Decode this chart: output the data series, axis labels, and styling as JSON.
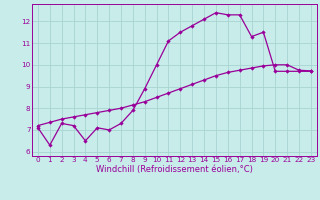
{
  "title": "",
  "xlabel": "Windchill (Refroidissement éolien,°C)",
  "bg_color": "#c8ecea",
  "grid_color": "#a8d4d2",
  "line_color": "#990099",
  "spine_color": "#660066",
  "line1_x": [
    0,
    1,
    2,
    3,
    4,
    5,
    6,
    7,
    8,
    9,
    10,
    11,
    12,
    13,
    14,
    15,
    16,
    17,
    18,
    19,
    20,
    21,
    22,
    23
  ],
  "line1_y": [
    7.1,
    6.3,
    7.3,
    7.2,
    6.5,
    7.1,
    7.0,
    7.3,
    7.9,
    8.9,
    10.0,
    11.1,
    11.5,
    11.8,
    12.1,
    12.4,
    12.3,
    12.3,
    11.3,
    11.5,
    9.7,
    9.7,
    9.7,
    9.7
  ],
  "line2_x": [
    0,
    1,
    2,
    3,
    4,
    5,
    6,
    7,
    8,
    9,
    10,
    11,
    12,
    13,
    14,
    15,
    16,
    17,
    18,
    19,
    20,
    21,
    22,
    23
  ],
  "line2_y": [
    7.2,
    7.35,
    7.5,
    7.6,
    7.7,
    7.8,
    7.9,
    8.0,
    8.15,
    8.3,
    8.5,
    8.7,
    8.9,
    9.1,
    9.3,
    9.5,
    9.65,
    9.75,
    9.85,
    9.95,
    10.0,
    10.0,
    9.75,
    9.72
  ],
  "ylim": [
    5.8,
    12.8
  ],
  "xlim": [
    -0.5,
    23.5
  ],
  "yticks": [
    6,
    7,
    8,
    9,
    10,
    11,
    12
  ],
  "xticks": [
    0,
    1,
    2,
    3,
    4,
    5,
    6,
    7,
    8,
    9,
    10,
    11,
    12,
    13,
    14,
    15,
    16,
    17,
    18,
    19,
    20,
    21,
    22,
    23
  ],
  "marker": "D",
  "markersize": 2.2,
  "linewidth": 0.9,
  "tick_fontsize": 5.2,
  "xlabel_fontsize": 6.0
}
